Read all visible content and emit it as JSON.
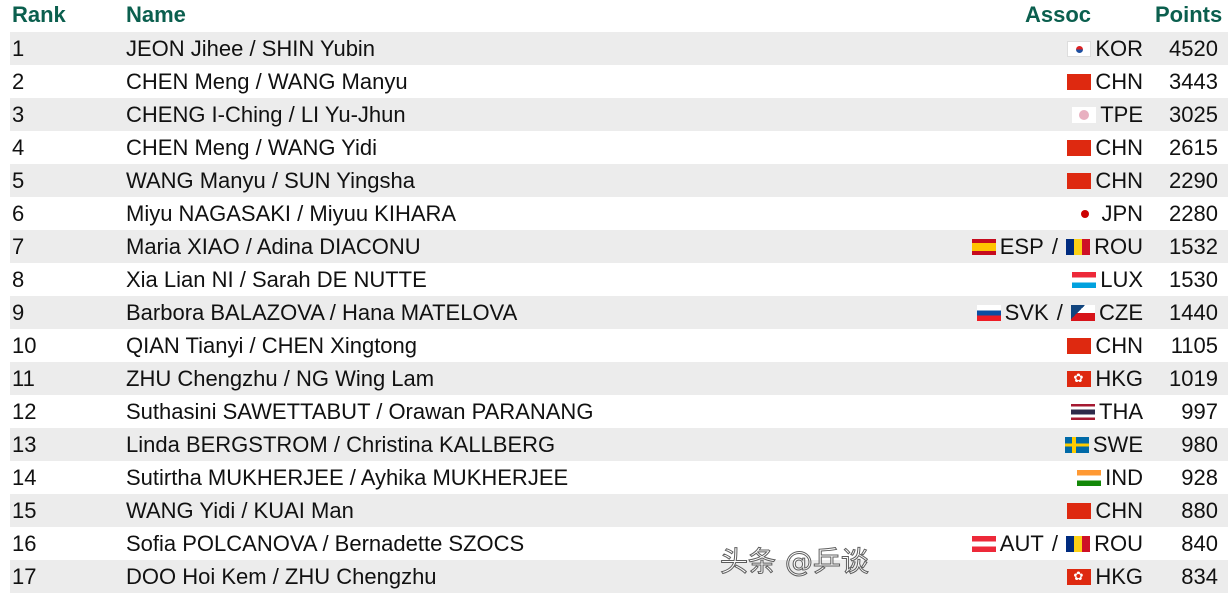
{
  "headers": {
    "rank": "Rank",
    "name": "Name",
    "assoc": "Assoc",
    "points": "Points"
  },
  "rows": [
    {
      "rank": "1",
      "name": "JEON Jihee / SHIN Yubin",
      "assoc": [
        {
          "code": "KOR",
          "flag": "KOR"
        }
      ],
      "points": "4520"
    },
    {
      "rank": "2",
      "name": "CHEN Meng / WANG Manyu",
      "assoc": [
        {
          "code": "CHN",
          "flag": "CHN"
        }
      ],
      "points": "3443"
    },
    {
      "rank": "3",
      "name": "CHENG I-Ching / LI Yu-Jhun",
      "assoc": [
        {
          "code": "TPE",
          "flag": "TPE"
        }
      ],
      "points": "3025"
    },
    {
      "rank": "4",
      "name": "CHEN Meng / WANG Yidi",
      "assoc": [
        {
          "code": "CHN",
          "flag": "CHN"
        }
      ],
      "points": "2615"
    },
    {
      "rank": "5",
      "name": "WANG Manyu / SUN Yingsha",
      "assoc": [
        {
          "code": "CHN",
          "flag": "CHN"
        }
      ],
      "points": "2290"
    },
    {
      "rank": "6",
      "name": "Miyu NAGASAKI / Miyuu KIHARA",
      "assoc": [
        {
          "code": "JPN",
          "flag": "JPN"
        }
      ],
      "points": "2280"
    },
    {
      "rank": "7",
      "name": "Maria XIAO / Adina DIACONU",
      "assoc": [
        {
          "code": "ESP",
          "flag": "ESP"
        },
        {
          "code": "ROU",
          "flag": "ROU"
        }
      ],
      "points": "1532"
    },
    {
      "rank": "8",
      "name": "Xia Lian NI / Sarah DE NUTTE",
      "assoc": [
        {
          "code": "LUX",
          "flag": "LUX"
        }
      ],
      "points": "1530"
    },
    {
      "rank": "9",
      "name": "Barbora BALAZOVA / Hana MATELOVA",
      "assoc": [
        {
          "code": "SVK",
          "flag": "SVK"
        },
        {
          "code": "CZE",
          "flag": "CZE"
        }
      ],
      "points": "1440"
    },
    {
      "rank": "10",
      "name": "QIAN Tianyi / CHEN Xingtong",
      "assoc": [
        {
          "code": "CHN",
          "flag": "CHN"
        }
      ],
      "points": "1105"
    },
    {
      "rank": "11",
      "name": "ZHU Chengzhu / NG Wing Lam",
      "assoc": [
        {
          "code": "HKG",
          "flag": "HKG"
        }
      ],
      "points": "1019"
    },
    {
      "rank": "12",
      "name": "Suthasini SAWETTABUT / Orawan PARANANG",
      "assoc": [
        {
          "code": "THA",
          "flag": "THA"
        }
      ],
      "points": "997"
    },
    {
      "rank": "13",
      "name": "Linda BERGSTROM / Christina KALLBERG",
      "assoc": [
        {
          "code": "SWE",
          "flag": "SWE"
        }
      ],
      "points": "980"
    },
    {
      "rank": "14",
      "name": "Sutirtha MUKHERJEE / Ayhika MUKHERJEE",
      "assoc": [
        {
          "code": "IND",
          "flag": "IND"
        }
      ],
      "points": "928"
    },
    {
      "rank": "15",
      "name": "WANG Yidi / KUAI Man",
      "assoc": [
        {
          "code": "CHN",
          "flag": "CHN"
        }
      ],
      "points": "880"
    },
    {
      "rank": "16",
      "name": "Sofia POLCANOVA / Bernadette SZOCS",
      "assoc": [
        {
          "code": "AUT",
          "flag": "AUT"
        },
        {
          "code": "ROU",
          "flag": "ROU"
        }
      ],
      "points": "840"
    },
    {
      "rank": "17",
      "name": "DOO Hoi Kem / ZHU Chengzhu",
      "assoc": [
        {
          "code": "HKG",
          "flag": "HKG"
        }
      ],
      "points": "834"
    }
  ],
  "assoc_separator": " / ",
  "watermark": "头条 @乒谈",
  "colors": {
    "header": "#0b5f4e",
    "row_alt": "#ececec"
  }
}
